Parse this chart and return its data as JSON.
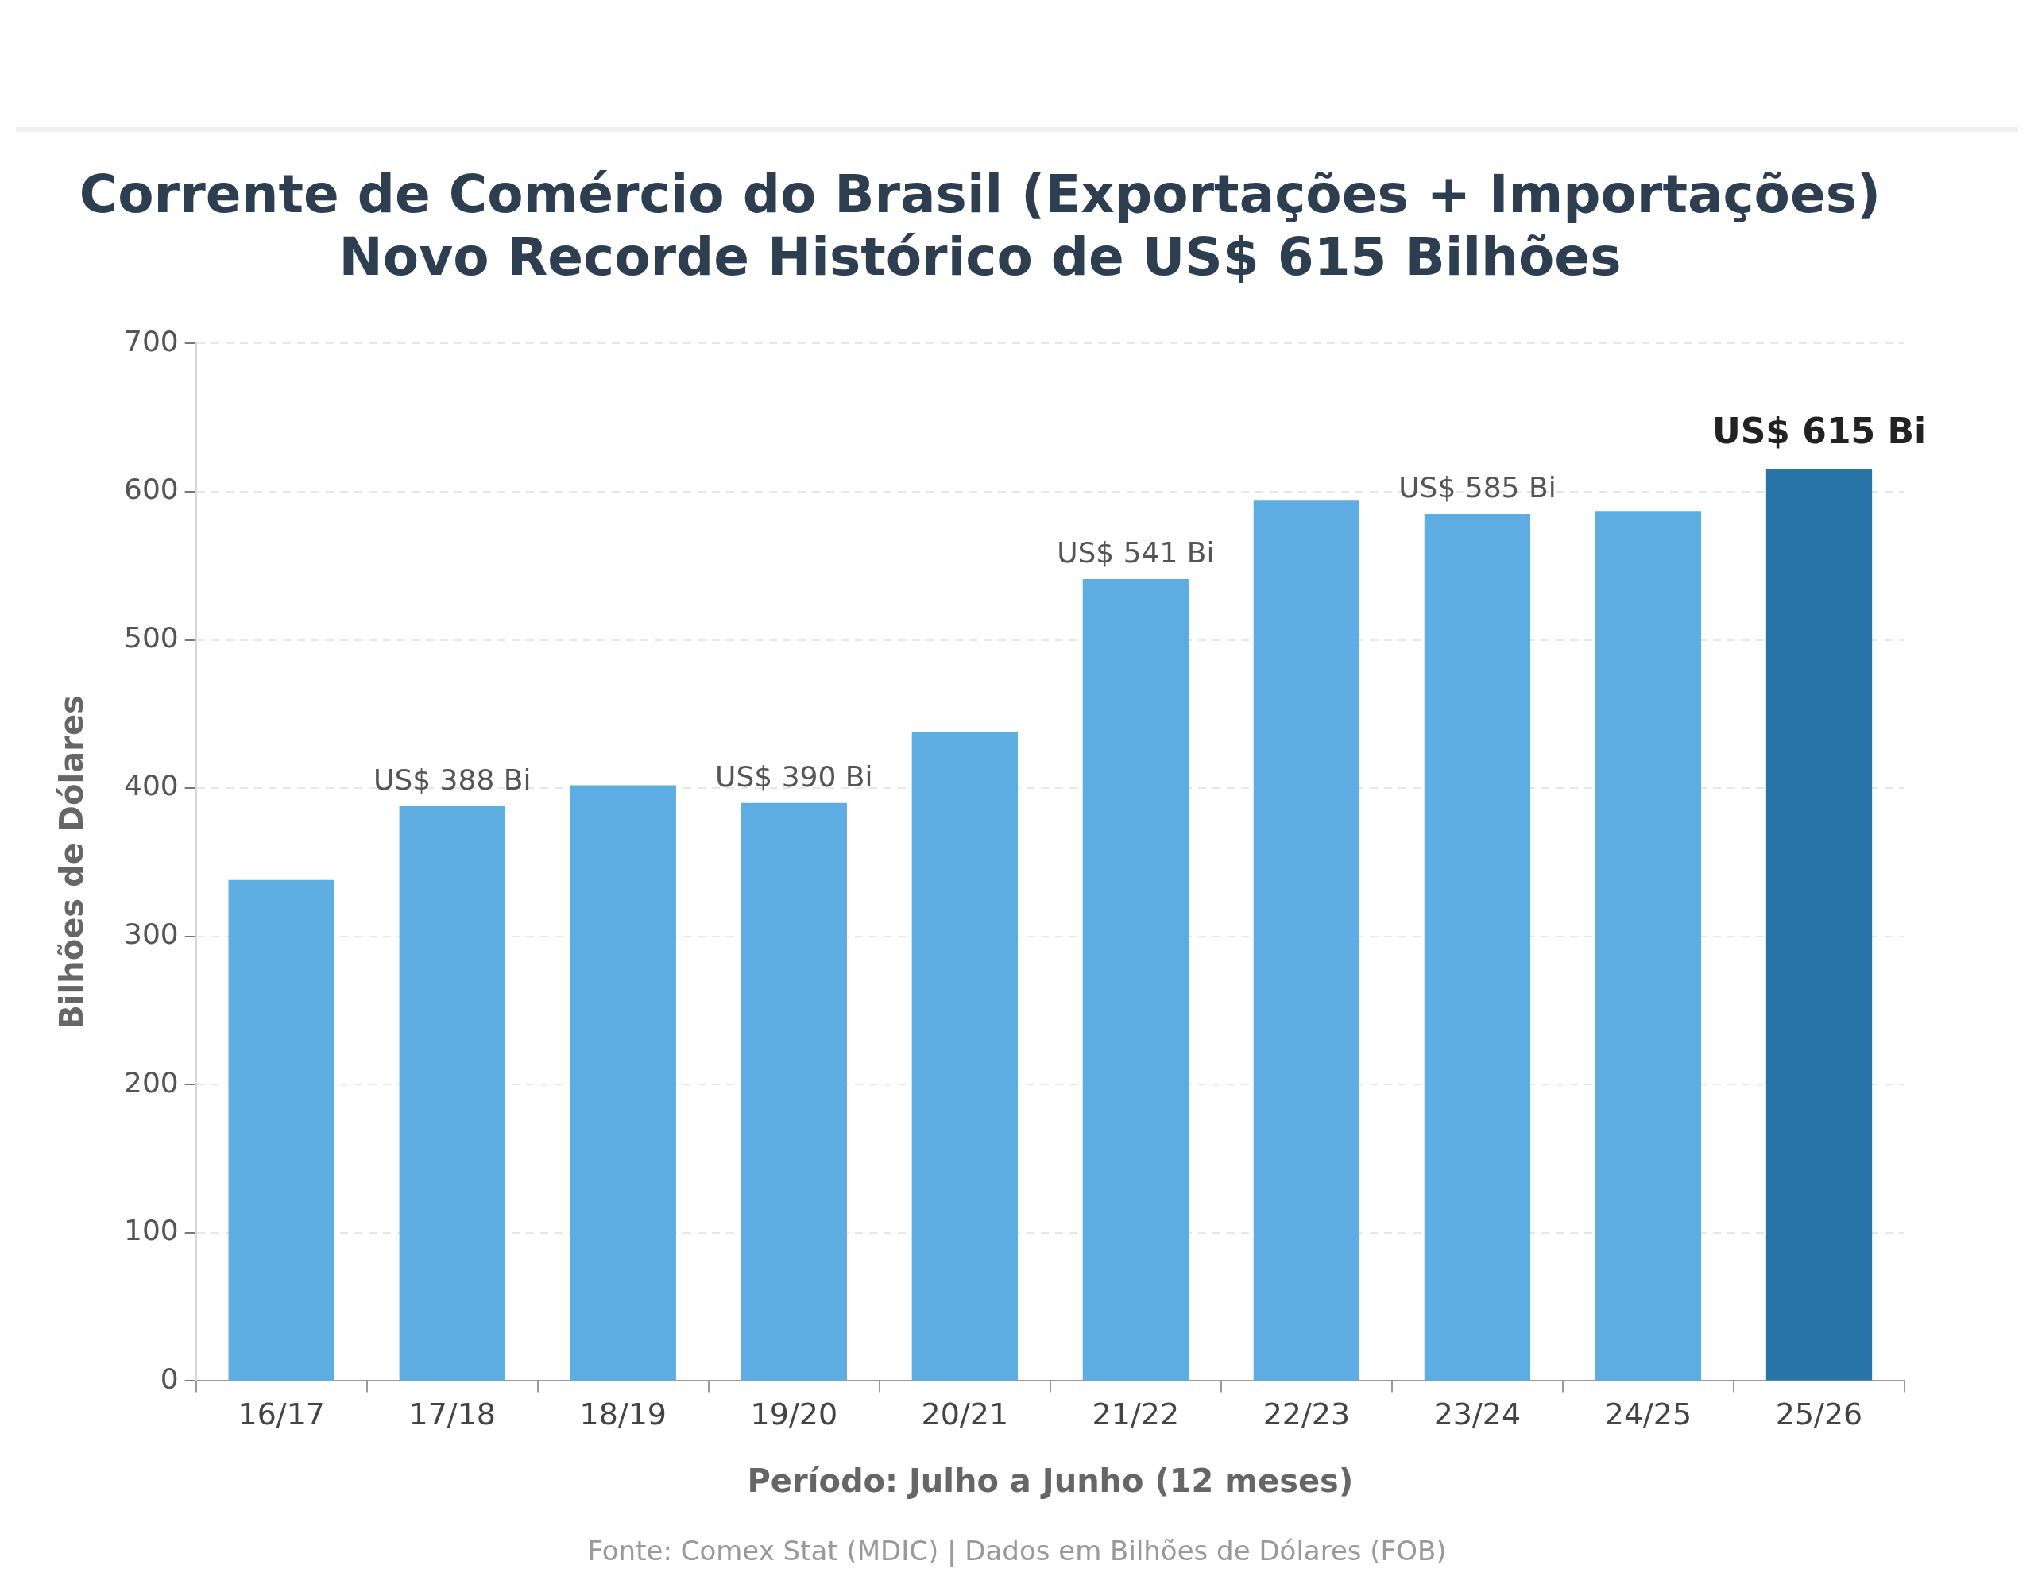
{
  "chart_data": {
    "type": "bar",
    "title": "Corrente de Comércio do Brasil (Exportações + Importações)\nNovo Recorde Histórico de US$ 615 Bilhões",
    "xlabel": "Período: Julho a Junho (12 meses)",
    "ylabel": "Bilhões de Dólares",
    "annotations": [
      "Fonte: Comex Stat (MDIC) | Dados em Bilhões de Dólares (FOB)"
    ],
    "categories": [
      "16/17",
      "17/18",
      "18/19",
      "19/20",
      "20/21",
      "21/22",
      "22/23",
      "23/24",
      "24/25",
      "25/26"
    ],
    "values": [
      338,
      388,
      402,
      390,
      438,
      541,
      594,
      585,
      587,
      615
    ],
    "colors": [
      "#5dade2",
      "#5dade2",
      "#5dade2",
      "#5dade2",
      "#5dade2",
      "#5dade2",
      "#5dade2",
      "#5dade2",
      "#5dade2",
      "#2874a6"
    ],
    "value_labels": [
      null,
      "US$ 388 Bi",
      null,
      "US$ 390 Bi",
      null,
      "US$ 541 Bi",
      null,
      "US$ 585 Bi",
      null,
      "US$ 615 Bi"
    ],
    "ylim": [
      0,
      700
    ],
    "yticks": [
      0,
      100,
      200,
      300,
      400,
      500,
      600,
      700
    ],
    "grid": "y"
  }
}
